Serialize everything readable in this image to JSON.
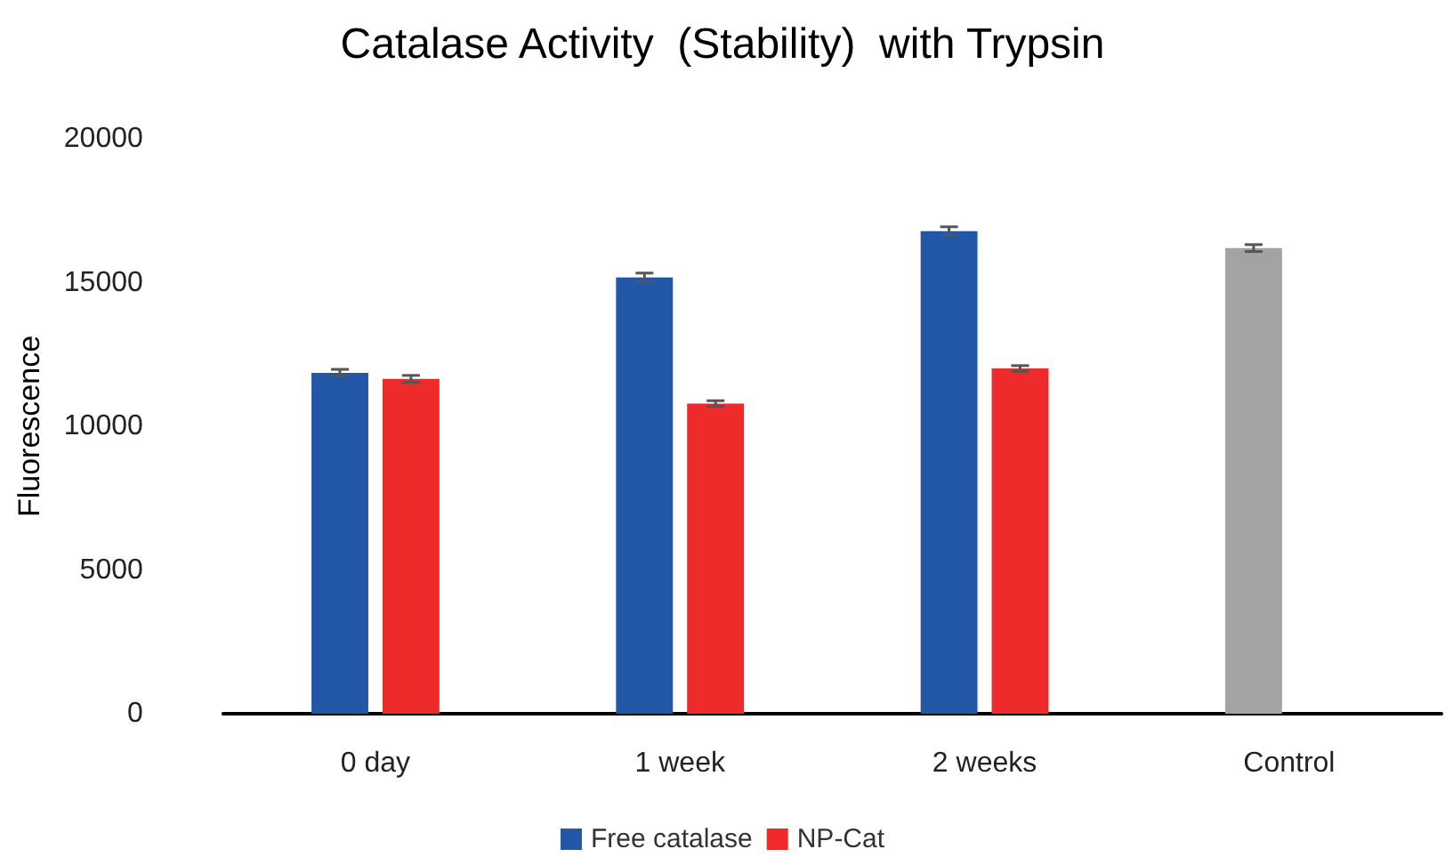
{
  "chart_data": {
    "type": "bar",
    "title": "Catalase Activity  (Stability)  with Trypsin",
    "ylabel": "Fluorescence",
    "categories": [
      "0 day",
      "1 week",
      "2 weeks",
      "Control"
    ],
    "series": [
      {
        "name": "Free catalase",
        "color": "#2257a8",
        "colors": [
          "#2257a8",
          "#2257a8",
          "#2257a8",
          "#a3a3a6"
        ],
        "values": [
          11860,
          15180,
          16790,
          16200
        ],
        "errors": [
          120,
          150,
          150,
          120
        ]
      },
      {
        "name": "NP-Cat",
        "color": "#ee2a2a",
        "values": [
          11650,
          10790,
          12010,
          null
        ],
        "errors": [
          120,
          100,
          100,
          null
        ]
      }
    ],
    "ylim": [
      0,
      20000
    ],
    "yticks": [
      0,
      5000,
      10000,
      15000,
      20000
    ],
    "grid": false,
    "legend": "bottom"
  }
}
